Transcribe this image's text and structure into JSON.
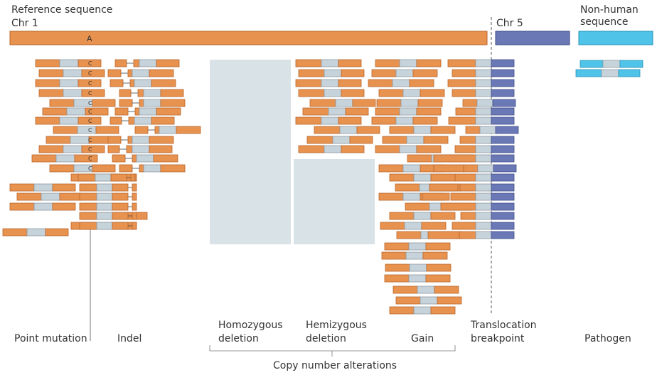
{
  "header": {
    "reference_title": "Reference sequence",
    "chr1_label": "Chr 1",
    "chr5_label": "Chr 5",
    "nonhuman_line1": "Non-human",
    "nonhuman_line2": "sequence",
    "ref_base": "A",
    "mutant_base": "C"
  },
  "categories": {
    "point_mutation": "Point mutation",
    "indel": "Indel",
    "homozygous_line1": "Homozygous",
    "homozygous_line2": "deletion",
    "hemizygous_line1": "Hemizygous",
    "hemizygous_line2": "deletion",
    "gain": "Gain",
    "translocation_line1": "Translocation",
    "translocation_line2": "breakpoint",
    "pathogen": "Pathogen",
    "cna_group": "Copy number alterations"
  },
  "colors": {
    "chr1": "#e8924f",
    "chr5": "#6a78b6",
    "non_human": "#4fc3e8",
    "read_middle": "#c7d3db",
    "deletion_region": "#d9e2e6"
  }
}
